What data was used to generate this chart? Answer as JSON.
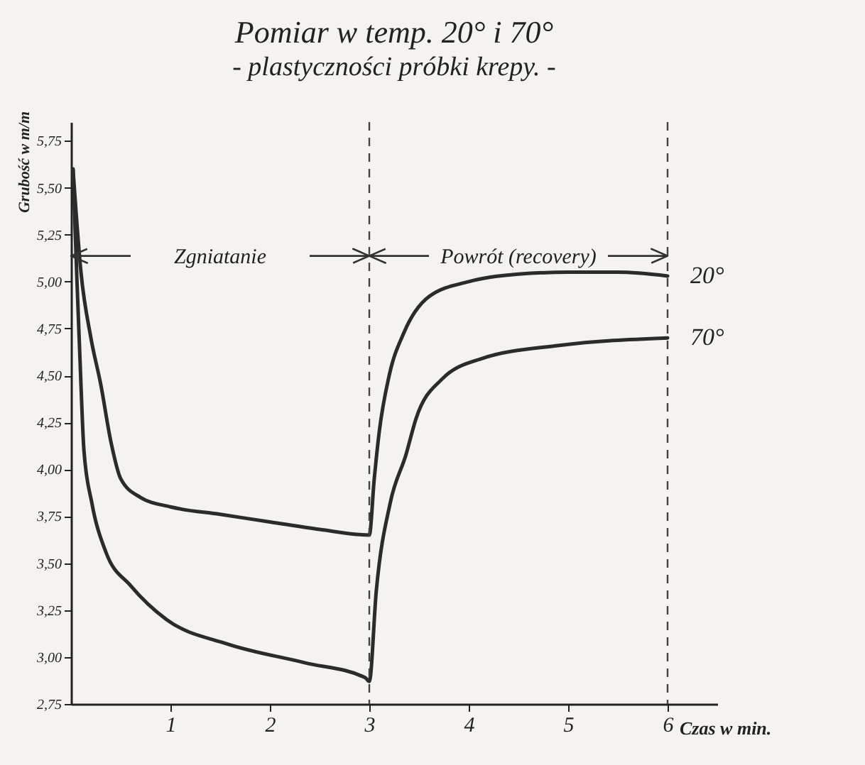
{
  "chart_data": {
    "type": "line",
    "title": "Pomiar w temp. 20° i 70°",
    "subtitle": "- plastyczności próbki krepy. -",
    "xlabel": "Czas w min.",
    "ylabel": "Grubość w m/m",
    "annotations": [
      "Zgniatanie",
      "Powrót (recovery)"
    ],
    "xlim": [
      0,
      6.5
    ],
    "xticks": [
      1,
      2,
      3,
      4,
      5,
      6
    ],
    "ylim": [
      2.75,
      5.85
    ],
    "yticks": [
      {
        "value": 2.75,
        "label": "2,75"
      },
      {
        "value": 3,
        "label": "3,00"
      },
      {
        "value": 3.25,
        "label": "3,25"
      },
      {
        "value": 3.5,
        "label": "3,50"
      },
      {
        "value": 3.75,
        "label": "3,75"
      },
      {
        "value": 4,
        "label": "4,00"
      },
      {
        "value": 4.25,
        "label": "4,25"
      },
      {
        "value": 4.5,
        "label": "4,50"
      },
      {
        "value": 4.75,
        "label": "4,75"
      },
      {
        "value": 5,
        "label": "5,00"
      },
      {
        "value": 5.25,
        "label": "5,25"
      },
      {
        "value": 5.5,
        "label": "5,50"
      },
      {
        "value": 5.75,
        "label": "5,75"
      }
    ],
    "ref_lines": [
      {
        "axis": "x",
        "value": 3,
        "line_style": "dashed",
        "color": "#444444"
      },
      {
        "axis": "x",
        "value": 6,
        "line_style": "dashed",
        "color": "#444444"
      }
    ],
    "series": [
      {
        "name": "20°",
        "color": "#2b2b2b",
        "x": [
          0.02,
          0.1,
          0.2,
          0.3,
          0.4,
          0.5,
          0.7,
          1.0,
          1.5,
          2.0,
          2.5,
          3.0,
          3.05,
          3.1,
          3.2,
          3.35,
          3.6,
          4.0,
          4.5,
          5.0,
          5.5,
          6.0
        ],
        "values": [
          5.6,
          5.05,
          4.7,
          4.45,
          4.15,
          3.95,
          3.85,
          3.8,
          3.76,
          3.72,
          3.68,
          3.65,
          3.95,
          4.2,
          4.5,
          4.73,
          4.92,
          5.0,
          5.04,
          5.05,
          5.05,
          5.03
        ]
      },
      {
        "name": "70°",
        "color": "#2b2b2b",
        "x": [
          0.02,
          0.06,
          0.09,
          0.13,
          0.21,
          0.35,
          0.6,
          0.96,
          1.57,
          2.35,
          2.96,
          3.0,
          3.07,
          3.21,
          3.37,
          3.47,
          3.73,
          4.13,
          4.91,
          6.0
        ],
        "values": [
          5.6,
          5.0,
          4.59,
          4.1,
          3.82,
          3.56,
          3.38,
          3.2,
          3.07,
          2.97,
          2.89,
          2.87,
          3.35,
          3.82,
          4.08,
          4.27,
          4.48,
          4.59,
          4.66,
          4.7
        ]
      }
    ]
  }
}
